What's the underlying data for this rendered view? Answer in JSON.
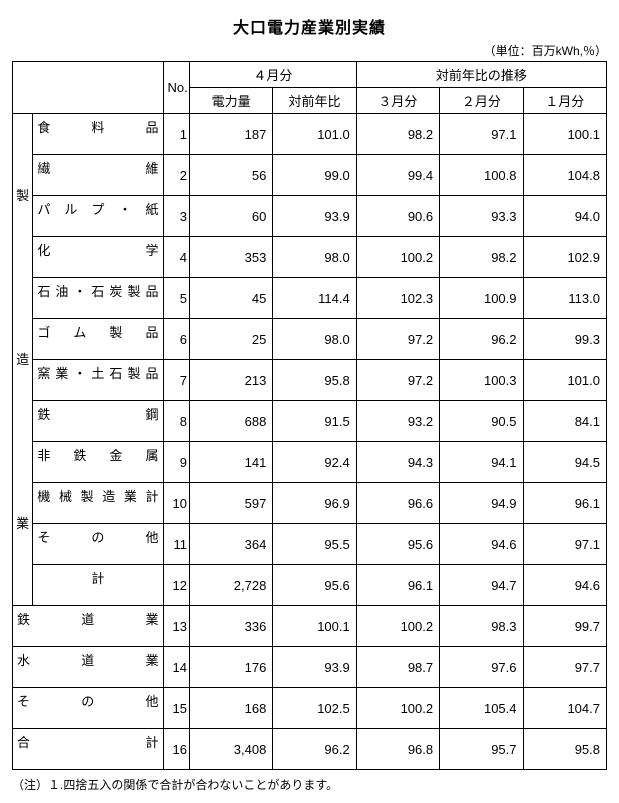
{
  "title": "大口電力産業別実績",
  "unit": "（単位：百万kWh,％）",
  "header": {
    "no": "No.",
    "group_april": "４月分",
    "group_trend": "対前年比の推移",
    "col_power": "電力量",
    "col_vs": "対前年比",
    "col_m3": "３月分",
    "col_m2": "２月分",
    "col_m1": "１月分"
  },
  "vertical_label": "製　　造　　業",
  "rows": [
    {
      "cat": "食　　料　　品",
      "no": "1",
      "d": [
        "187",
        "101.0",
        "98.2",
        "97.1",
        "100.1"
      ]
    },
    {
      "cat": "繊　　　　　維",
      "no": "2",
      "d": [
        "56",
        "99.0",
        "99.4",
        "100.8",
        "104.8"
      ]
    },
    {
      "cat": "パ ル プ ・ 紙",
      "no": "3",
      "d": [
        "60",
        "93.9",
        "90.6",
        "93.3",
        "94.0"
      ]
    },
    {
      "cat": "化　　　　　学",
      "no": "4",
      "d": [
        "353",
        "98.0",
        "100.2",
        "98.2",
        "102.9"
      ]
    },
    {
      "cat": "石油・石炭製品",
      "no": "5",
      "d": [
        "45",
        "114.4",
        "102.3",
        "100.9",
        "113.0"
      ]
    },
    {
      "cat": "ゴ　ム　製　品",
      "no": "6",
      "d": [
        "25",
        "98.0",
        "97.2",
        "96.2",
        "99.3"
      ]
    },
    {
      "cat": "窯業・土石製品",
      "no": "7",
      "d": [
        "213",
        "95.8",
        "97.2",
        "100.3",
        "101.0"
      ]
    },
    {
      "cat": "鉄　　　　　鋼",
      "no": "8",
      "d": [
        "688",
        "91.5",
        "93.2",
        "90.5",
        "84.1"
      ]
    },
    {
      "cat": "非　鉄　金　属",
      "no": "9",
      "d": [
        "141",
        "92.4",
        "94.3",
        "94.1",
        "94.5"
      ]
    },
    {
      "cat": "機 械 製 造 業 計",
      "no": "10",
      "d": [
        "597",
        "96.9",
        "96.6",
        "94.9",
        "96.1"
      ]
    },
    {
      "cat": "そ　　の　　他",
      "no": "11",
      "d": [
        "364",
        "95.5",
        "95.6",
        "94.6",
        "97.1"
      ]
    },
    {
      "cat": "計",
      "no": "12",
      "d": [
        "2,728",
        "95.6",
        "96.1",
        "94.7",
        "94.6"
      ]
    }
  ],
  "rows_bottom": [
    {
      "cat": "鉄　　道　　業",
      "no": "13",
      "d": [
        "336",
        "100.1",
        "100.2",
        "98.3",
        "99.7"
      ]
    },
    {
      "cat": "水　　道　　業",
      "no": "14",
      "d": [
        "176",
        "93.9",
        "98.7",
        "97.6",
        "97.7"
      ]
    },
    {
      "cat": "そ　　の　　他",
      "no": "15",
      "d": [
        "168",
        "102.5",
        "100.2",
        "105.4",
        "104.7"
      ]
    },
    {
      "cat": "合　　　　　計",
      "no": "16",
      "d": [
        "3,408",
        "96.2",
        "96.8",
        "95.7",
        "95.8"
      ]
    }
  ],
  "note": "（注）１.四捨五入の関係で合計が合わないことがあります。"
}
